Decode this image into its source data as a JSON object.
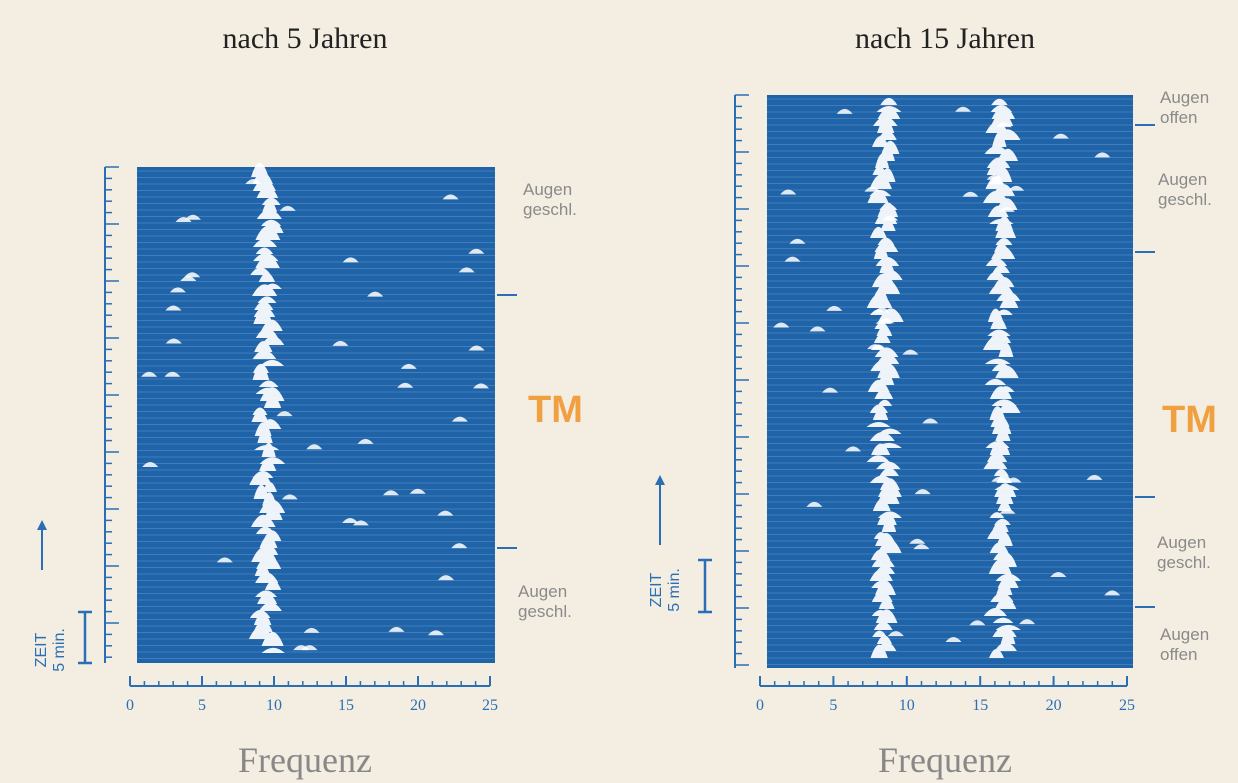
{
  "chart_data": [
    {
      "type": "spectral_array",
      "title": "nach 5 Jahren",
      "x_label": "Frequenz",
      "xlim": [
        0,
        25
      ],
      "xticks": [
        0,
        5,
        10,
        15,
        20,
        25
      ],
      "peak_frequencies": [
        9.5
      ],
      "time_label": "ZEIT",
      "scale_label": "5 min.",
      "annotations": [
        "Augen\ngeschl.",
        "TM",
        "Augen\ngeschl."
      ]
    },
    {
      "type": "spectral_array",
      "title": "nach 15 Jahren",
      "x_label": "Frequenz",
      "xlim": [
        0,
        25
      ],
      "xticks": [
        0,
        5,
        10,
        15,
        20,
        25
      ],
      "peak_frequencies": [
        8.5,
        16.5
      ],
      "time_label": "ZEIT",
      "scale_label": "5 min.",
      "annotations": [
        "Augen\noffen",
        "Augen\ngeschl.",
        "TM",
        "Augen\ngeschl.",
        "Augen\noffen"
      ]
    }
  ]
}
